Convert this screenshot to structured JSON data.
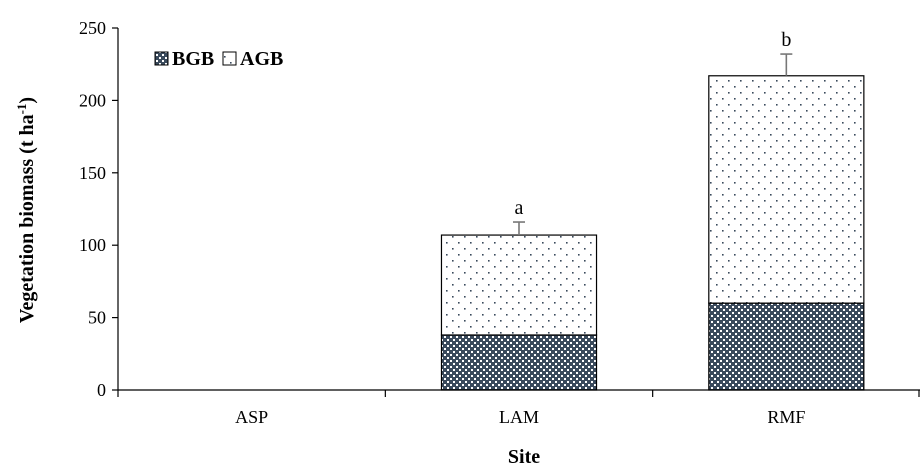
{
  "chart_data": {
    "type": "bar",
    "stacked": true,
    "categories": [
      "ASP",
      "LAM",
      "RMF"
    ],
    "series": [
      {
        "name": "BGB",
        "values": [
          0,
          38,
          60
        ],
        "color": "#3a4a5c",
        "pattern": "checker"
      },
      {
        "name": "AGB",
        "values": [
          0,
          69,
          157
        ],
        "color": "#ffffff",
        "pattern": "dots"
      }
    ],
    "totals": [
      0,
      107,
      217
    ],
    "error_bars": [
      0,
      9,
      15
    ],
    "annotations": [
      "",
      "a",
      "b"
    ],
    "xlabel": "Site",
    "ylabel_main": "Vegetation biomass (t ha",
    "ylabel_sup": "-1",
    "ylabel_end": ")",
    "ylim": [
      0,
      250
    ],
    "yticks": [
      0,
      50,
      100,
      150,
      200,
      250
    ],
    "legend_position": "top-left",
    "grid": false
  }
}
